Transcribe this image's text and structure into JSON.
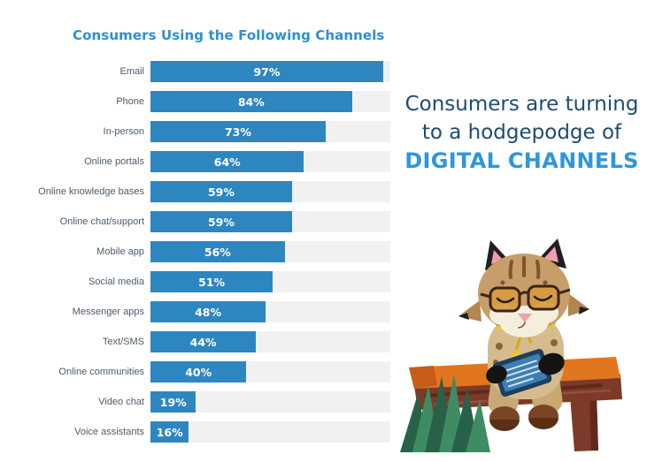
{
  "chart_data": {
    "type": "bar",
    "orientation": "horizontal",
    "title": "Consumers Using the Following Channels",
    "categories": [
      "Email",
      "Phone",
      "In-person",
      "Online portals",
      "Online knowledge bases",
      "Online chat/support",
      "Mobile app",
      "Social media",
      "Messenger apps",
      "Text/SMS",
      "Online communities",
      "Video chat",
      "Voice assistants"
    ],
    "values": [
      97,
      84,
      73,
      64,
      59,
      59,
      56,
      51,
      48,
      44,
      40,
      19,
      16
    ],
    "value_suffix": "%",
    "xlim": [
      0,
      100
    ],
    "grid": false,
    "legend": false,
    "bar_color": "#2e86c0",
    "track_color": "#f1f1f2",
    "title_color": "#2d8fd5",
    "label_color": "#4d5a66",
    "value_label_color": "#ffffff"
  },
  "headline": {
    "line1": "Consumers are turning",
    "line2": "to a hodgepodge of",
    "line3": "DIGITAL CHANNELS",
    "text_color": "#1c4b72",
    "accent_color": "#2e96dd"
  },
  "illustration": {
    "name": "bobcat-mascot-reading-tablet-on-bench"
  }
}
